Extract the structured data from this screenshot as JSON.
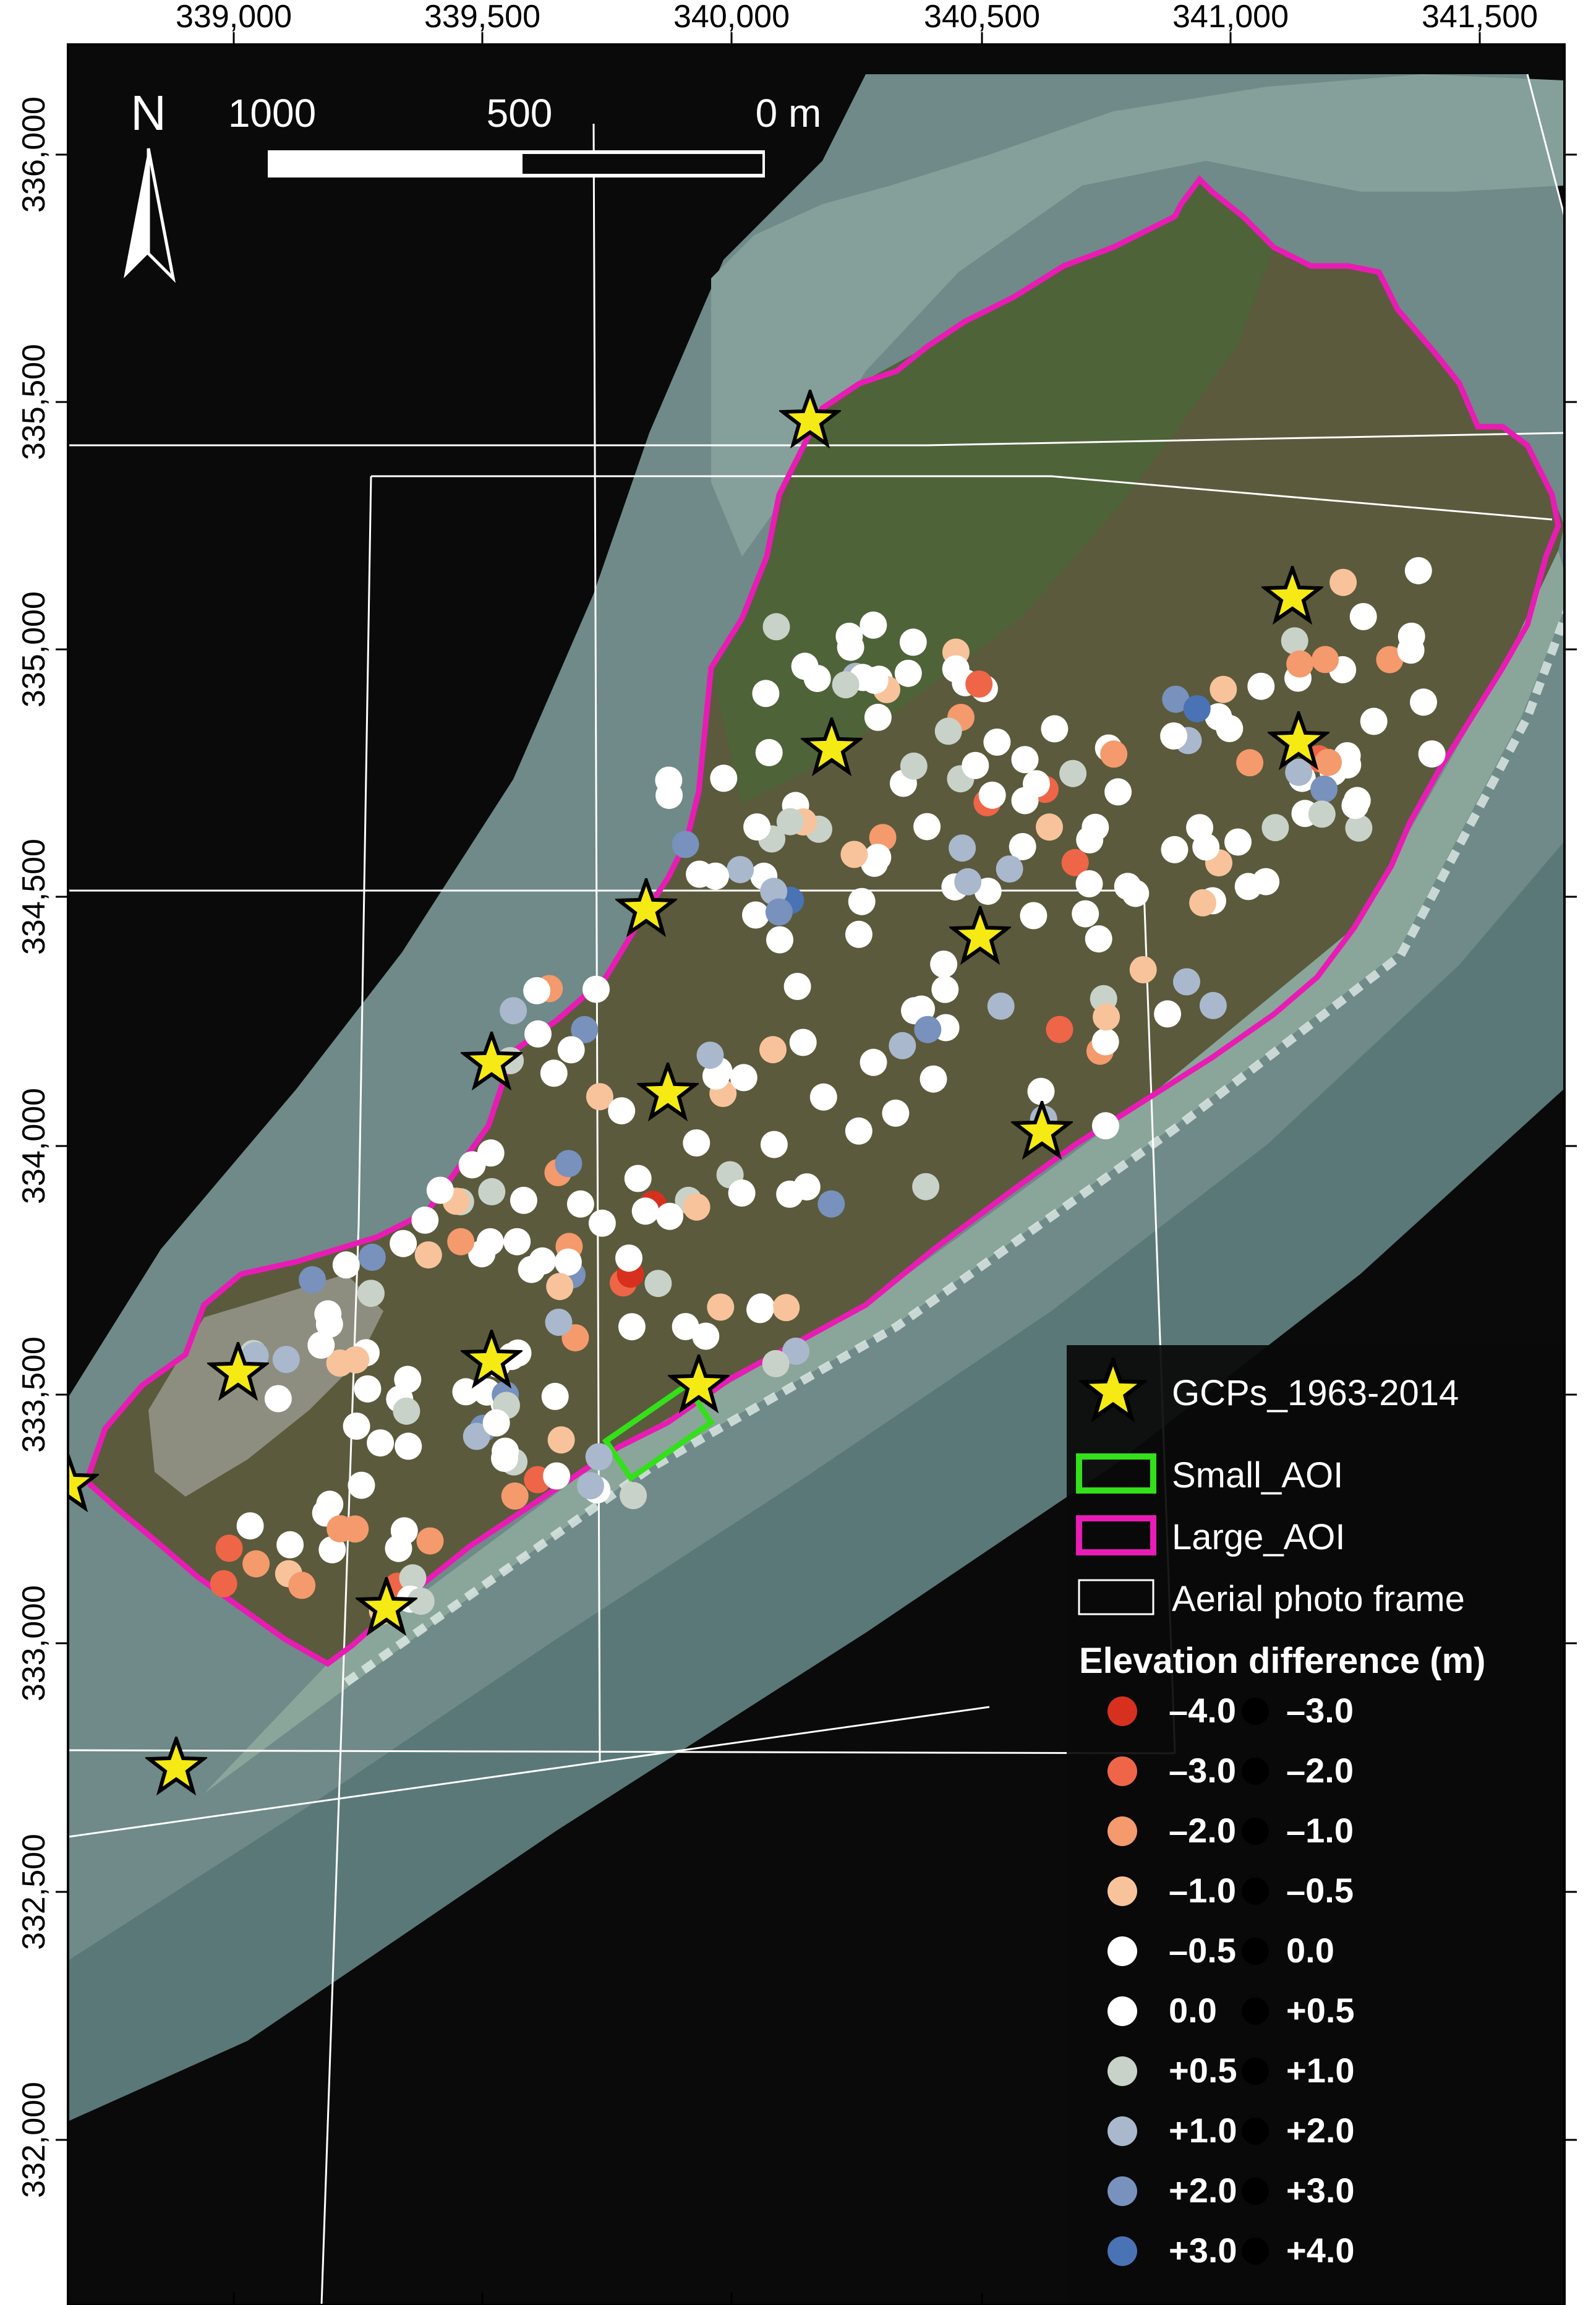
{
  "axes": {
    "x_ticks": [
      "339,000",
      "339,500",
      "340,000",
      "340,500",
      "341,000",
      "341,500"
    ],
    "y_ticks": [
      "336,000",
      "335,500",
      "335,000",
      "334,500",
      "334,000",
      "333,500",
      "333,000",
      "332,500",
      "332,000"
    ]
  },
  "north_arrow": {
    "label": "N",
    "icon": "north-arrow-icon"
  },
  "scale_bar": {
    "labels": [
      "1000",
      "500",
      "0 m"
    ]
  },
  "legend": {
    "gcp_label": "GCPs_1963-2014",
    "small_aoi_label": "Small_AOI",
    "large_aoi_label": "Large_AOI",
    "frame_label": "Aerial photo frame",
    "elev_title": "Elevation difference (m)",
    "classes": [
      {
        "low": "–4.0",
        "high": "–3.0",
        "color": "#d7301f"
      },
      {
        "low": "–3.0",
        "high": "–2.0",
        "color": "#ef6548"
      },
      {
        "low": "–2.0",
        "high": "–1.0",
        "color": "#f49a6c"
      },
      {
        "low": "–1.0",
        "high": "–0.5",
        "color": "#f8c39a"
      },
      {
        "low": "–0.5",
        "high": "0.0",
        "color": "#ffffff"
      },
      {
        "low": "0.0",
        "high": "+0.5",
        "color": "#ffffff"
      },
      {
        "low": "+0.5",
        "high": "+1.0",
        "color": "#c8d2c8"
      },
      {
        "low": "+1.0",
        "high": "+2.0",
        "color": "#a9b8cc"
      },
      {
        "low": "+2.0",
        "high": "+3.0",
        "color": "#7891bd"
      },
      {
        "low": "+3.0",
        "high": "+4.0",
        "color": "#4a73b5"
      }
    ]
  },
  "colors": {
    "large_aoi": "#e81cb4",
    "small_aoi": "#33e01a",
    "gcp_star": "#f5ea14",
    "frame": "#ffffff"
  }
}
